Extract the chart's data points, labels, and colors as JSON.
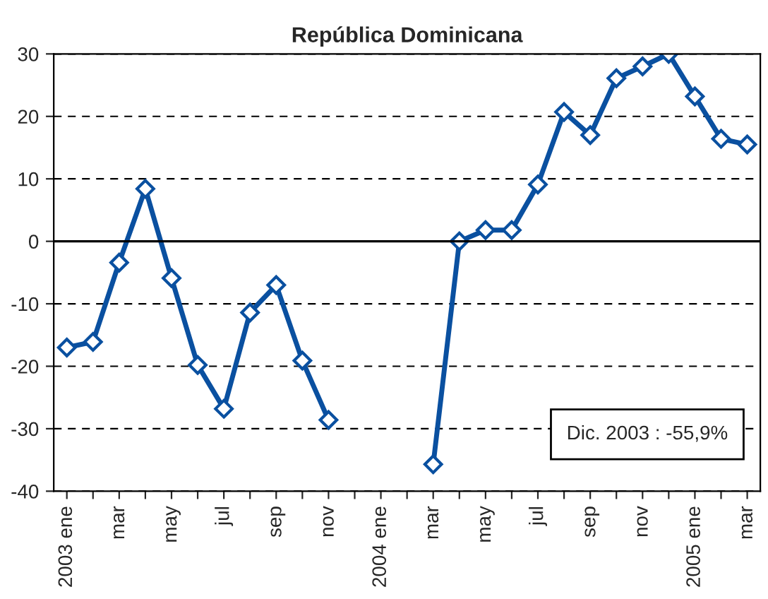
{
  "chart_data": {
    "type": "line",
    "title": "República Dominicana",
    "categories": [
      "2003 ene",
      null,
      "mar",
      null,
      "may",
      null,
      "jul",
      null,
      "sep",
      null,
      "nov",
      null,
      "2004 ene",
      null,
      "mar",
      null,
      "may",
      null,
      "jul",
      null,
      "sep",
      null,
      "nov",
      null,
      "2005 ene",
      null,
      "mar"
    ],
    "series": [
      {
        "color": "#0a50a0",
        "values": [
          -17,
          -16.1,
          -3.4,
          8.4,
          -5.9,
          -19.8,
          -26.8,
          -11.4,
          -7,
          -19.1,
          -28.6,
          null,
          null,
          null,
          -35.7,
          0,
          1.8,
          1.8,
          9.1,
          20.7,
          17,
          26.1,
          28,
          30,
          23.2,
          16.4,
          15.5
        ]
      }
    ],
    "ylim": [
      -40,
      30
    ],
    "yticks": [
      -40,
      -30,
      -20,
      -10,
      0,
      10,
      20,
      30
    ],
    "grid": "y",
    "marker": "diamond",
    "line_style": "solid",
    "legend": false,
    "annotations": [
      "Dic. 2003 : -55,9%"
    ]
  }
}
